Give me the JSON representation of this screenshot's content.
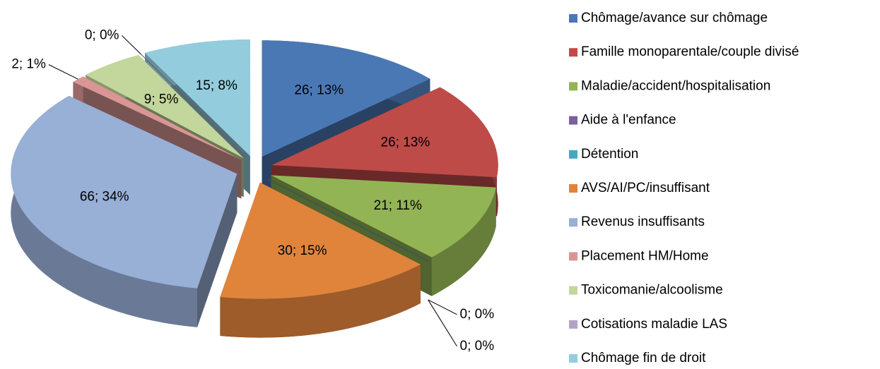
{
  "chart_data": {
    "type": "pie",
    "categories": [
      "Chômage/avance sur chômage",
      "Famille monoparentale/couple divisé",
      "Maladie/accident/hospitalisation",
      "Aide à l'enfance",
      "Détention",
      "AVS/AI/PC/insuffisant",
      "Revenus insuffisants",
      "Placement HM/Home",
      "Toxicomanie/alcoolisme",
      "Cotisations maladie LAS",
      "Chômage fin de droit"
    ],
    "values": [
      26,
      26,
      21,
      0,
      0,
      30,
      66,
      2,
      9,
      0,
      15
    ],
    "value_labels": [
      "26; 13%",
      "26; 13%",
      "21; 11%",
      "0; 0%",
      "0; 0%",
      "30; 15%",
      "66; 34%",
      "2; 1%",
      "9; 5%",
      "0; 0%",
      "15; 8%"
    ],
    "colors": [
      "#4a78b4",
      "#be4b48",
      "#93b454",
      "#7b5f9e",
      "#47a7c1",
      "#e0843c",
      "#98afd6",
      "#d99694",
      "#c3d69b",
      "#b3a2c7",
      "#93cddd"
    ],
    "legend": "right"
  }
}
